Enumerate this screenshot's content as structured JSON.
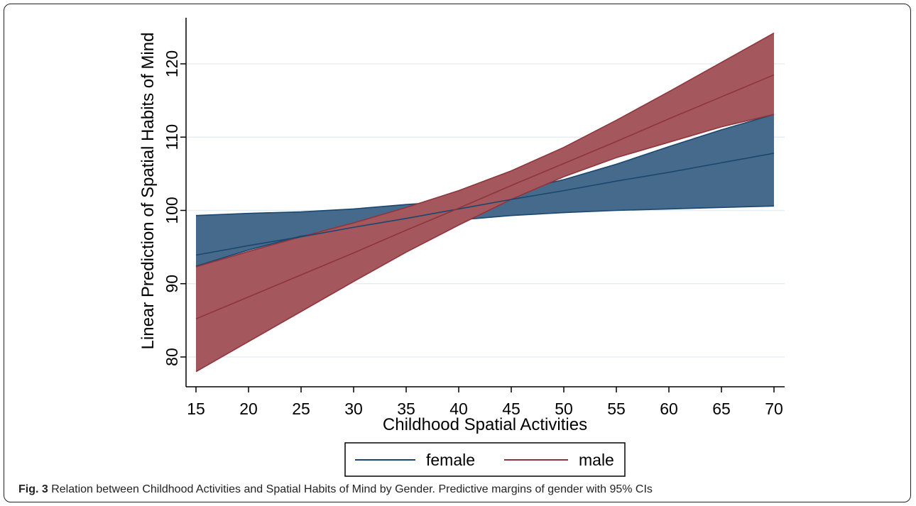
{
  "chart_data": {
    "type": "line",
    "title": "",
    "xlabel": "Childhood Spatial Activities",
    "ylabel": "Linear Prediction of Spatial Habits of Mind",
    "xlim": [
      15,
      70
    ],
    "ylim": [
      77,
      126
    ],
    "x_ticks": [
      "15",
      "20",
      "25",
      "30",
      "35",
      "40",
      "45",
      "50",
      "55",
      "60",
      "65",
      "70"
    ],
    "y_ticks": [
      "80",
      "90",
      "100",
      "110",
      "120"
    ],
    "grid": true,
    "legend_position": "bottom",
    "series": [
      {
        "name": "female",
        "color": "#1a476f",
        "band_color": "#466a8c",
        "x": [
          15,
          20,
          25,
          30,
          35,
          40,
          45,
          50,
          55,
          60,
          65,
          70
        ],
        "values": [
          93.9,
          95.2,
          96.4,
          97.7,
          98.9,
          100.2,
          101.5,
          102.7,
          104.0,
          105.2,
          106.5,
          107.8
        ],
        "ci_low": [
          92.4,
          94.6,
          96.5,
          97.6,
          98.4,
          98.7,
          99.3,
          99.7,
          100.0,
          100.2,
          100.4,
          100.6
        ],
        "ci_high": [
          99.3,
          99.6,
          99.8,
          100.2,
          100.8,
          101.3,
          102.5,
          104.2,
          106.3,
          108.7,
          111.0,
          113.1
        ]
      },
      {
        "name": "male",
        "color": "#90353b",
        "band_color": "#a4575d",
        "x": [
          15,
          20,
          25,
          30,
          35,
          40,
          45,
          50,
          55,
          60,
          65,
          70
        ],
        "values": [
          85.2,
          88.2,
          91.2,
          94.2,
          97.3,
          100.3,
          103.4,
          106.4,
          109.4,
          112.5,
          115.5,
          118.5
        ],
        "ci_low": [
          78.0,
          82.1,
          86.2,
          90.3,
          94.3,
          98.0,
          101.5,
          104.6,
          107.2,
          109.3,
          111.4,
          113.1
        ],
        "ci_high": [
          92.3,
          94.4,
          96.4,
          98.3,
          100.4,
          102.7,
          105.4,
          108.6,
          112.3,
          116.2,
          120.2,
          124.2
        ]
      }
    ]
  },
  "caption": {
    "label": "Fig. 3",
    "text": " Relation between Childhood Activities and Spatial Habits of Mind by Gender. Predictive margins of gender with 95% CIs"
  }
}
